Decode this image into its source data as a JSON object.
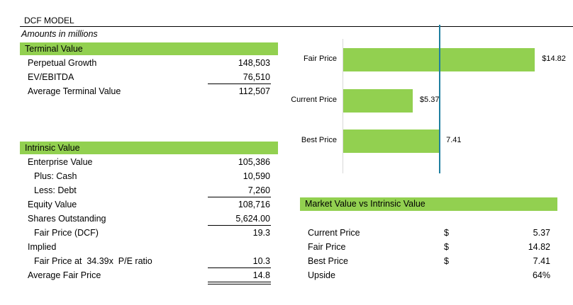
{
  "header": {
    "title": "DCF MODEL",
    "subtitle": "Amounts in millions"
  },
  "terminal_value": {
    "heading": "Terminal Value",
    "rows": [
      {
        "label": "Perpetual Growth",
        "value": "148,503"
      },
      {
        "label": "EV/EBITDA",
        "value": "76,510"
      },
      {
        "label": "Average Terminal Value",
        "value": "112,507"
      }
    ]
  },
  "intrinsic_value": {
    "heading": "Intrinsic Value",
    "rows": [
      {
        "label": "Enterprise Value",
        "value": "105,386"
      },
      {
        "label": "Plus: Cash",
        "value": "10,590"
      },
      {
        "label": "Less: Debt",
        "value": "7,260"
      },
      {
        "label": "Equity Value",
        "value": "108,716"
      },
      {
        "label": "Shares Outstanding",
        "value": "5,624.00"
      },
      {
        "label": "Fair Price (DCF)",
        "value": "19.3"
      },
      {
        "label": "Implied",
        "value": ""
      },
      {
        "label": "Fair Price at  34.39x  P/E ratio",
        "value": "10.3"
      },
      {
        "label": "Average Fair Price",
        "value": "14.8"
      }
    ]
  },
  "market_vs_intrinsic": {
    "heading": "Market Value vs Intrinsic Value",
    "rows": [
      {
        "label": "Current Price",
        "currency": "$",
        "value": "5.37"
      },
      {
        "label": "Fair Price",
        "currency": "$",
        "value": "14.82"
      },
      {
        "label": "Best Price",
        "currency": "$",
        "value": "7.41"
      },
      {
        "label": "Upside",
        "currency": "",
        "value": "64%"
      }
    ]
  },
  "chart_data": {
    "type": "bar",
    "orientation": "horizontal",
    "categories": [
      "Fair Price",
      "Current Price",
      "Best Price"
    ],
    "values": [
      14.82,
      5.37,
      7.41
    ],
    "data_labels": [
      "$14.82",
      "$5.37",
      "7.41"
    ],
    "reference_line": 7.41,
    "xlim": [
      0,
      17
    ],
    "colors": {
      "bar": "#92d050",
      "reference_line": "#1f7fa0"
    }
  }
}
